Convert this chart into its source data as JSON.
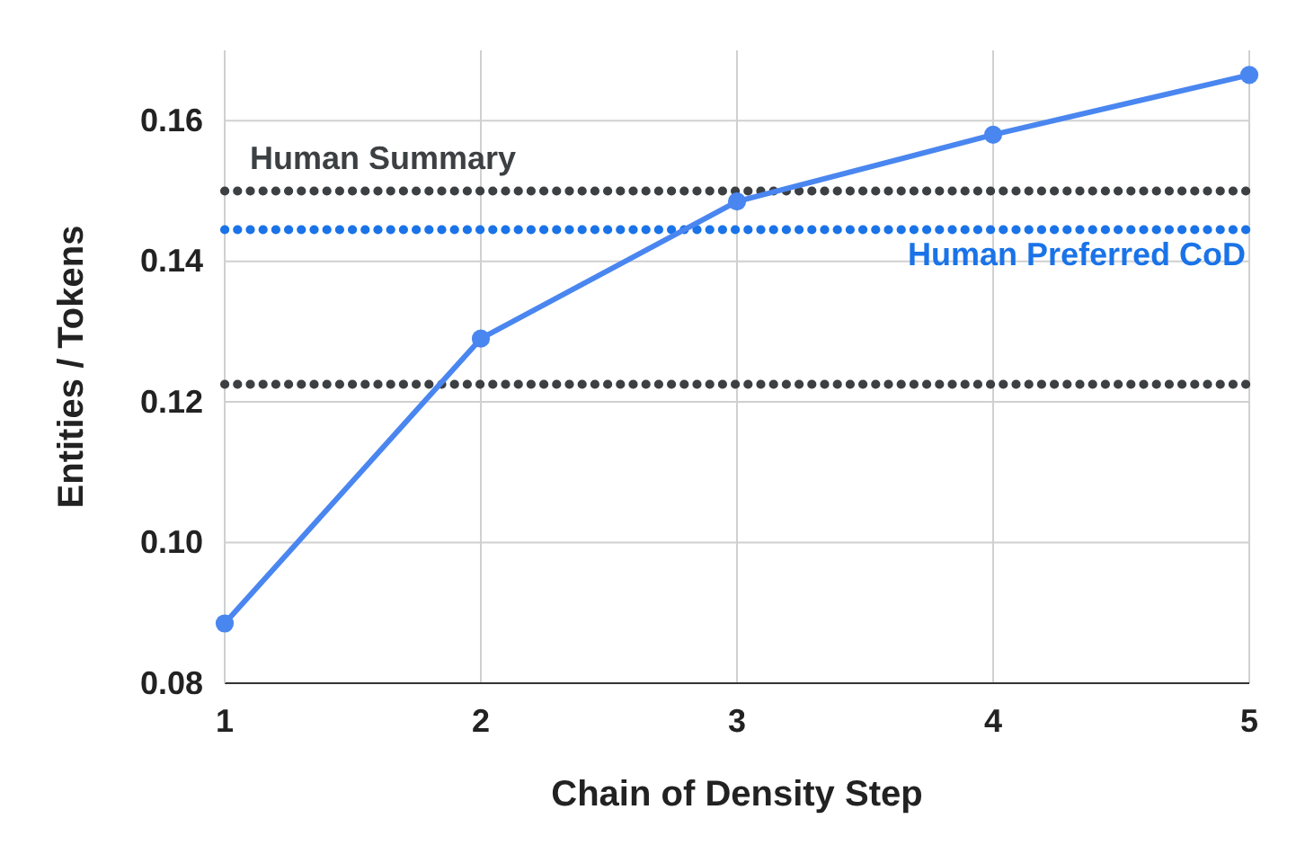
{
  "chart_data": {
    "type": "line",
    "xlabel": "Chain of Density Step",
    "ylabel": "Entities / Tokens",
    "x": [
      1,
      2,
      3,
      4,
      5
    ],
    "series": [
      {
        "color": "#4a86f0",
        "values": [
          0.0885,
          0.129,
          0.1485,
          0.158,
          0.1665
        ]
      }
    ],
    "xlim": [
      1,
      5
    ],
    "xticks": [
      1,
      2,
      3,
      4,
      5
    ],
    "ylim": [
      0.08,
      0.17
    ],
    "yticks": [
      {
        "value": 0.08,
        "label": "0.08"
      },
      {
        "value": 0.1,
        "label": "0.10"
      },
      {
        "value": 0.12,
        "label": "0.12"
      },
      {
        "value": 0.14,
        "label": "0.14"
      },
      {
        "value": 0.16,
        "label": "0.16"
      }
    ],
    "grid": true,
    "marker": "circle",
    "line_style": "solid",
    "ref_lines": [
      {
        "axis": "y",
        "value": 0.15,
        "label": "Human Summary",
        "color": "#3c4043",
        "line_style": "dotted"
      },
      {
        "axis": "y",
        "value": 0.1445,
        "label": "Human Preferred CoD",
        "color": "#1a73e8",
        "line_style": "dotted"
      },
      {
        "axis": "y",
        "value": 0.1225,
        "color": "#3c4043",
        "line_style": "dotted"
      }
    ]
  }
}
